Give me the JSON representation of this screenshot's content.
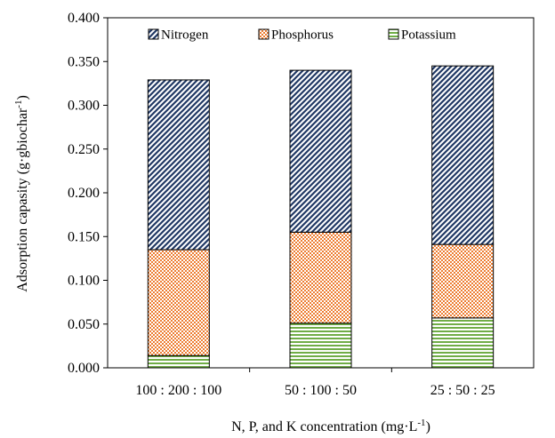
{
  "chart_data": {
    "type": "bar",
    "stacked": true,
    "categories": [
      "100 : 200 : 100",
      "50 : 100 : 50",
      "25 : 50 : 25"
    ],
    "series": [
      {
        "name": "Potassium",
        "values": [
          0.014,
          0.051,
          0.057
        ],
        "color": "#70AD47",
        "pattern": "horizontal-lines"
      },
      {
        "name": "Phosphorus",
        "values": [
          0.121,
          0.104,
          0.084
        ],
        "color": "#ED7D31",
        "pattern": "checker"
      },
      {
        "name": "Nitrogen",
        "values": [
          0.194,
          0.185,
          0.204
        ],
        "color": "#203864",
        "pattern": "diagonal-lines"
      }
    ],
    "legend_order": [
      "Nitrogen",
      "Phosphorus",
      "Potassium"
    ],
    "legend_position": "top",
    "xlabel": {
      "main": "N, P, and K concentration (mg·L",
      "sup": "-1",
      "tail": ")"
    },
    "ylabel": {
      "main": "Adsorption capasity (g·gbiochar",
      "sup": "-1",
      "tail": ")"
    },
    "ylim": [
      0,
      0.4
    ],
    "yticks": [
      "0.000",
      "0.050",
      "0.100",
      "0.150",
      "0.200",
      "0.250",
      "0.300",
      "0.350",
      "0.400"
    ],
    "grid": false
  }
}
